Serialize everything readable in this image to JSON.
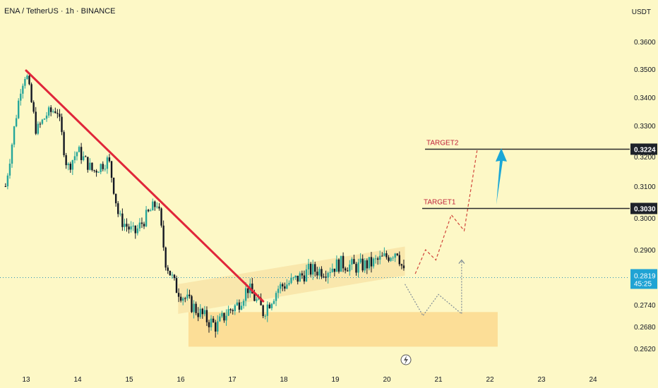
{
  "header": {
    "symbol_line": "ENA / TetherUS · 1h · BINANCE"
  },
  "axis_unit": "USDT",
  "chart_data": {
    "type": "candlestick",
    "title": "ENA / TetherUS · 1h · BINANCE",
    "y_ticks": [
      "0.3600",
      "0.3500",
      "0.3400",
      "0.3300",
      "0.3200",
      "0.3100",
      "0.3000",
      "0.2900",
      "0.2740",
      "0.2680",
      "0.2620"
    ],
    "y_tick_values": [
      0.36,
      0.35,
      0.34,
      0.33,
      0.32,
      0.31,
      0.3,
      0.29,
      0.274,
      0.268,
      0.262
    ],
    "x_ticks": [
      "13",
      "14",
      "15",
      "16",
      "17",
      "18",
      "19",
      "20",
      "21",
      "22",
      "23",
      "24"
    ],
    "x_tick_days": [
      13,
      14,
      15,
      16,
      17,
      18,
      19,
      20,
      21,
      22,
      23,
      24
    ],
    "price_anchors": [
      {
        "day": 12.6,
        "price": 0.31
      },
      {
        "day": 12.9,
        "price": 0.344
      },
      {
        "day": 13.0,
        "price": 0.349
      },
      {
        "day": 13.2,
        "price": 0.328
      },
      {
        "day": 13.4,
        "price": 0.334
      },
      {
        "day": 13.6,
        "price": 0.336
      },
      {
        "day": 13.8,
        "price": 0.316
      },
      {
        "day": 14.0,
        "price": 0.322
      },
      {
        "day": 14.3,
        "price": 0.315
      },
      {
        "day": 14.6,
        "price": 0.319
      },
      {
        "day": 14.8,
        "price": 0.3
      },
      {
        "day": 15.1,
        "price": 0.295
      },
      {
        "day": 15.4,
        "price": 0.302
      },
      {
        "day": 15.55,
        "price": 0.305
      },
      {
        "day": 15.7,
        "price": 0.287
      },
      {
        "day": 15.9,
        "price": 0.279
      },
      {
        "day": 16.2,
        "price": 0.274
      },
      {
        "day": 16.5,
        "price": 0.27
      },
      {
        "day": 16.7,
        "price": 0.268
      },
      {
        "day": 16.9,
        "price": 0.272
      },
      {
        "day": 17.1,
        "price": 0.274
      },
      {
        "day": 17.3,
        "price": 0.279
      },
      {
        "day": 17.6,
        "price": 0.272
      },
      {
        "day": 17.9,
        "price": 0.279
      },
      {
        "day": 18.2,
        "price": 0.281
      },
      {
        "day": 18.5,
        "price": 0.284
      },
      {
        "day": 18.8,
        "price": 0.284
      },
      {
        "day": 19.1,
        "price": 0.286
      },
      {
        "day": 19.4,
        "price": 0.285
      },
      {
        "day": 19.7,
        "price": 0.286
      },
      {
        "day": 20.0,
        "price": 0.288
      },
      {
        "day": 20.2,
        "price": 0.29
      },
      {
        "day": 20.35,
        "price": 0.2819
      }
    ],
    "annotations": {
      "downtrend_line": {
        "from": {
          "day": 13.0,
          "price": 0.3495
        },
        "to": {
          "day": 17.6,
          "price": 0.275
        }
      },
      "channel": {
        "x0": 15.95,
        "x1": 20.35,
        "lower0": 0.2715,
        "lower1": 0.2825,
        "upper0": 0.28,
        "upper1": 0.291
      },
      "demand_zone": {
        "x0": 16.15,
        "x1": 22.15,
        "top": 0.272,
        "bottom": 0.2625
      },
      "target1": {
        "label": "TARGET1",
        "price": 0.303,
        "tag": "0.3030"
      },
      "target2": {
        "label": "TARGET2",
        "price": 0.3224,
        "tag": "0.3224"
      },
      "current_price": {
        "value": "0.2819",
        "countdown": "45:25"
      },
      "bull_path": [
        {
          "day": 20.55,
          "price": 0.283
        },
        {
          "day": 20.75,
          "price": 0.29
        },
        {
          "day": 20.95,
          "price": 0.287
        },
        {
          "day": 21.25,
          "price": 0.301
        },
        {
          "day": 21.5,
          "price": 0.296
        },
        {
          "day": 21.75,
          "price": 0.322
        }
      ],
      "bear_path": [
        {
          "day": 20.35,
          "price": 0.28
        },
        {
          "day": 20.7,
          "price": 0.271
        },
        {
          "day": 21.0,
          "price": 0.277
        },
        {
          "day": 21.45,
          "price": 0.2715
        },
        {
          "day": 21.45,
          "price": 0.287
        }
      ]
    },
    "colors": {
      "up": "#26a69a",
      "down": "#131722",
      "trend": "#e0263a",
      "arrow": "#1aa7d6",
      "channel": "#f5d38c",
      "zone": "#fbd98e"
    }
  }
}
